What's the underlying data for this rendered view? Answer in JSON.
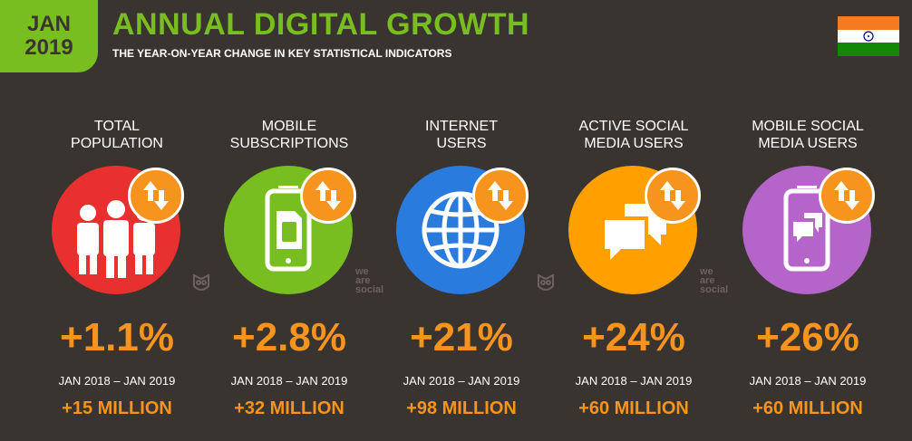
{
  "header": {
    "badge_month": "JAN",
    "badge_year": "2019",
    "title": "ANNUAL DIGITAL GROWTH",
    "subtitle": "THE YEAR-ON-YEAR CHANGE IN KEY STATISTICAL INDICATORS"
  },
  "watermark": {
    "line1": "we",
    "line2": "are",
    "line3": "social"
  },
  "colors": {
    "accent": "#78be20",
    "orange": "#f7941d",
    "background": "#3a3431",
    "red": "#e8312f",
    "green": "#78be20",
    "blue": "#2a7bde",
    "yellow": "#ffa000",
    "purple": "#b565c9"
  },
  "stats": [
    {
      "label_l1": "TOTAL",
      "label_l2": "POPULATION",
      "icon": "people-icon",
      "percent": "+1.1%",
      "period": "JAN 2018 – JAN 2019",
      "change": "+15 MILLION"
    },
    {
      "label_l1": "MOBILE",
      "label_l2": "SUBSCRIPTIONS",
      "icon": "phone-sim-icon",
      "percent": "+2.8%",
      "period": "JAN 2018 – JAN 2019",
      "change": "+32 MILLION"
    },
    {
      "label_l1": "INTERNET",
      "label_l2": "USERS",
      "icon": "globe-icon",
      "percent": "+21%",
      "period": "JAN 2018 – JAN 2019",
      "change": "+98 MILLION"
    },
    {
      "label_l1": "ACTIVE SOCIAL",
      "label_l2": "MEDIA USERS",
      "icon": "chat-bubbles-icon",
      "percent": "+24%",
      "period": "JAN 2018 – JAN 2019",
      "change": "+60 MILLION"
    },
    {
      "label_l1": "MOBILE SOCIAL",
      "label_l2": "MEDIA USERS",
      "icon": "mobile-chat-icon",
      "percent": "+26%",
      "period": "JAN 2018 – JAN 2019",
      "change": "+60 MILLION"
    }
  ]
}
